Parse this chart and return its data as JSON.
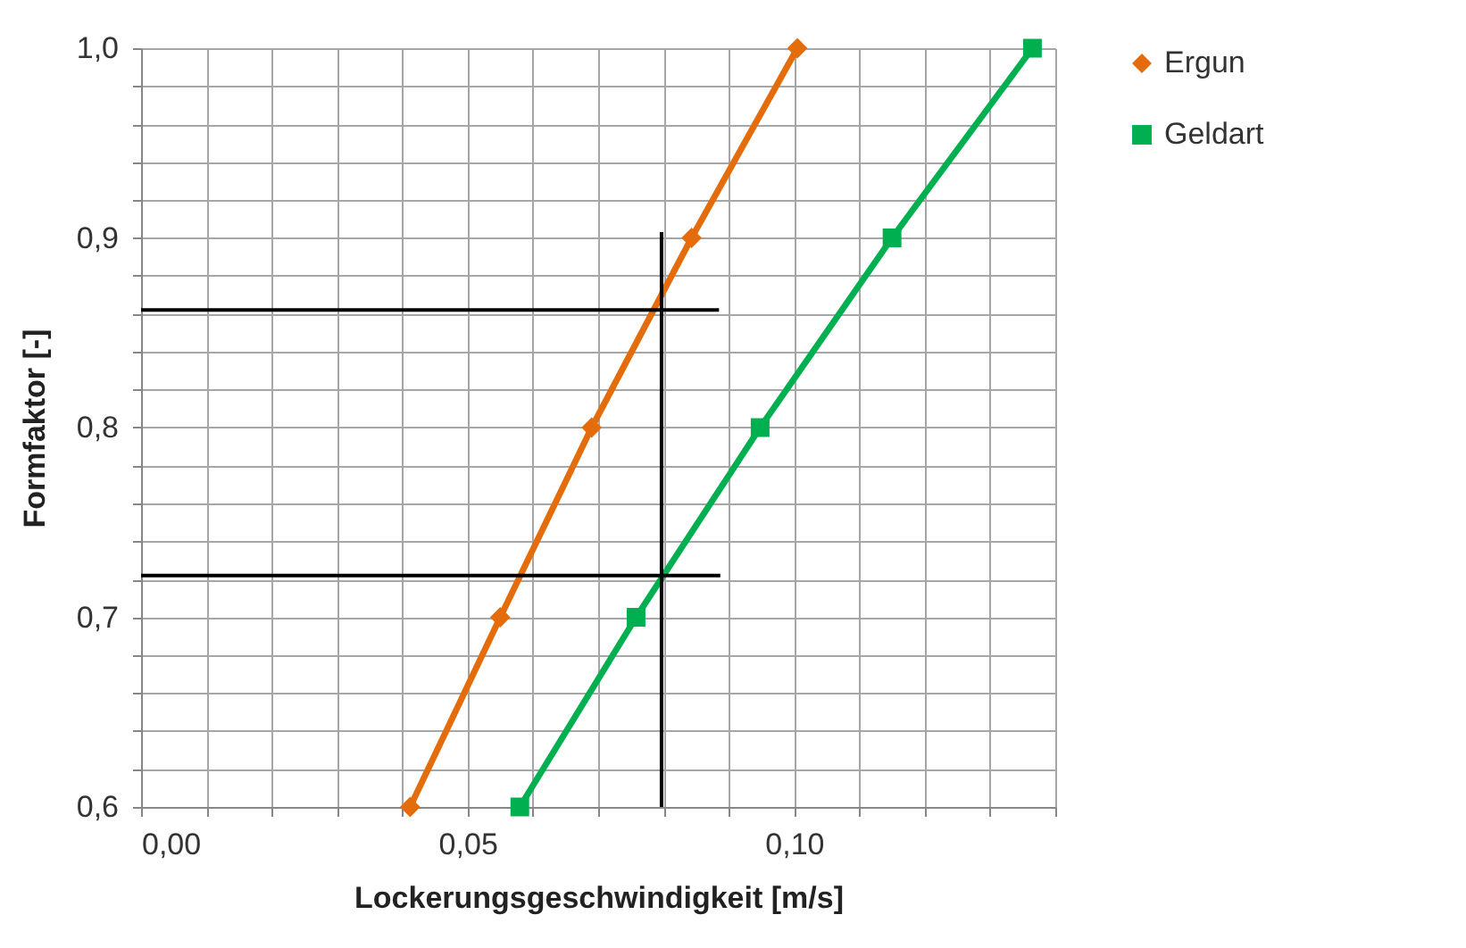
{
  "chart_data": {
    "type": "line",
    "xlabel": "Lockerungsgeschwindigkeit [m/s]",
    "ylabel": "Formfaktor [-]",
    "xlim": [
      0,
      0.14
    ],
    "xticks": [
      {
        "value": 0,
        "label": "0,00"
      },
      {
        "value": 0.01,
        "label": null
      },
      {
        "value": 0.02,
        "label": null
      },
      {
        "value": 0.03,
        "label": null
      },
      {
        "value": 0.04,
        "label": null
      },
      {
        "value": 0.05,
        "label": "0,05"
      },
      {
        "value": 0.06,
        "label": null
      },
      {
        "value": 0.07,
        "label": null
      },
      {
        "value": 0.08,
        "label": null
      },
      {
        "value": 0.09,
        "label": null
      },
      {
        "value": 0.1,
        "label": "0,10"
      },
      {
        "value": 0.11,
        "label": null
      },
      {
        "value": 0.12,
        "label": null
      },
      {
        "value": 0.13,
        "label": null
      },
      {
        "value": 0.14,
        "label": null
      }
    ],
    "ylim": [
      0.6,
      1.0
    ],
    "yticks": [
      {
        "value": 0.6,
        "label": "0,6"
      },
      {
        "value": 0.62,
        "label": null
      },
      {
        "value": 0.64,
        "label": null
      },
      {
        "value": 0.66,
        "label": null
      },
      {
        "value": 0.68,
        "label": null
      },
      {
        "value": 0.7,
        "label": "0,7"
      },
      {
        "value": 0.72,
        "label": null
      },
      {
        "value": 0.74,
        "label": null
      },
      {
        "value": 0.76,
        "label": null
      },
      {
        "value": 0.78,
        "label": null
      },
      {
        "value": 0.8,
        "label": "0,8"
      },
      {
        "value": 0.82,
        "label": null
      },
      {
        "value": 0.84,
        "label": null
      },
      {
        "value": 0.86,
        "label": null
      },
      {
        "value": 0.88,
        "label": null
      },
      {
        "value": 0.9,
        "label": "0,9"
      },
      {
        "value": 0.92,
        "label": null
      },
      {
        "value": 0.94,
        "label": null
      },
      {
        "value": 0.96,
        "label": null
      },
      {
        "value": 0.98,
        "label": null
      },
      {
        "value": 1.0,
        "label": "1,0"
      }
    ],
    "grid": true,
    "legend": "right",
    "series": [
      {
        "name": "Ergun",
        "color": "#e46c0a",
        "marker": "diamond",
        "x": [
          0.0412,
          0.055,
          0.069,
          0.0843,
          0.1005
        ],
        "values": [
          0.6,
          0.7,
          0.8,
          0.9,
          1.0
        ]
      },
      {
        "name": "Geldart",
        "color": "#00b050",
        "marker": "square",
        "x": [
          0.058,
          0.0758,
          0.0948,
          0.115,
          0.1365
        ],
        "values": [
          0.6,
          0.7,
          0.8,
          0.9,
          1.0
        ]
      },
      {
        "color": "#000000",
        "marker": "none",
        "x": [
          0,
          0.0885
        ],
        "values": [
          0.862,
          0.862
        ]
      },
      {
        "color": "#000000",
        "marker": "none",
        "x": [
          0,
          0.0887
        ],
        "values": [
          0.722,
          0.722
        ]
      },
      {
        "color": "#000000",
        "marker": "none",
        "x": [
          0.0797,
          0.0797
        ],
        "values": [
          0.6,
          0.903
        ]
      }
    ]
  }
}
